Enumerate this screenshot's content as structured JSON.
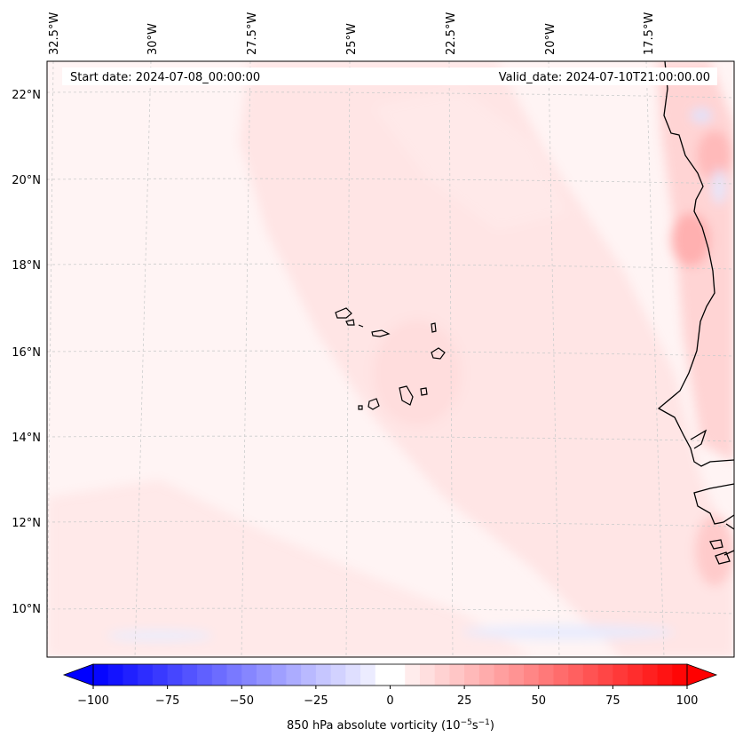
{
  "header": {
    "start_label": "Start date: 2024-07-08_00:00:00",
    "valid_label": "Valid_date: 2024-07-10T21:00:00.00"
  },
  "map": {
    "projection": "Lambert conformal (regional)",
    "lon_ticks": [
      "32.5°W",
      "30°W",
      "27.5°W",
      "25°W",
      "22.5°W",
      "20°W",
      "17.5°W"
    ],
    "lat_ticks": [
      "22°N",
      "20°N",
      "18°N",
      "16°N",
      "14°N",
      "12°N",
      "10°N"
    ],
    "coastline_color": "#000000",
    "gridline_color": "#cccccc"
  },
  "colorbar": {
    "ticks": [
      "−100",
      "−75",
      "−50",
      "−25",
      "0",
      "25",
      "50",
      "75",
      "100"
    ],
    "values": [
      -100,
      -75,
      -50,
      -25,
      0,
      25,
      50,
      75,
      100
    ],
    "label_main": "850 hPa absolute vorticity (10",
    "label_exp1": "−5",
    "label_mid": "s",
    "label_exp2": "−1",
    "label_end": ")",
    "neg_color": "#0000ff",
    "mid_color": "#ffffff",
    "pos_color": "#ff0000"
  },
  "chart_data": {
    "type": "heatmap",
    "title": "850 hPa absolute vorticity",
    "variable": "850 hPa absolute vorticity",
    "units": "10^-5 s^-1",
    "colormap": "bwr",
    "vmin": -100,
    "vmax": 100,
    "lon_range": [
      -32.5,
      -16.5
    ],
    "lat_range": [
      9,
      22.5
    ],
    "background_level": 5,
    "features": [
      {
        "name": "Cape Verde islands",
        "level": 15
      },
      {
        "name": "West African coast band",
        "level": 30
      },
      {
        "name": "Senegal coast maximum",
        "level": 40
      },
      {
        "name": "Southern weak negative band",
        "level": -8
      }
    ]
  }
}
